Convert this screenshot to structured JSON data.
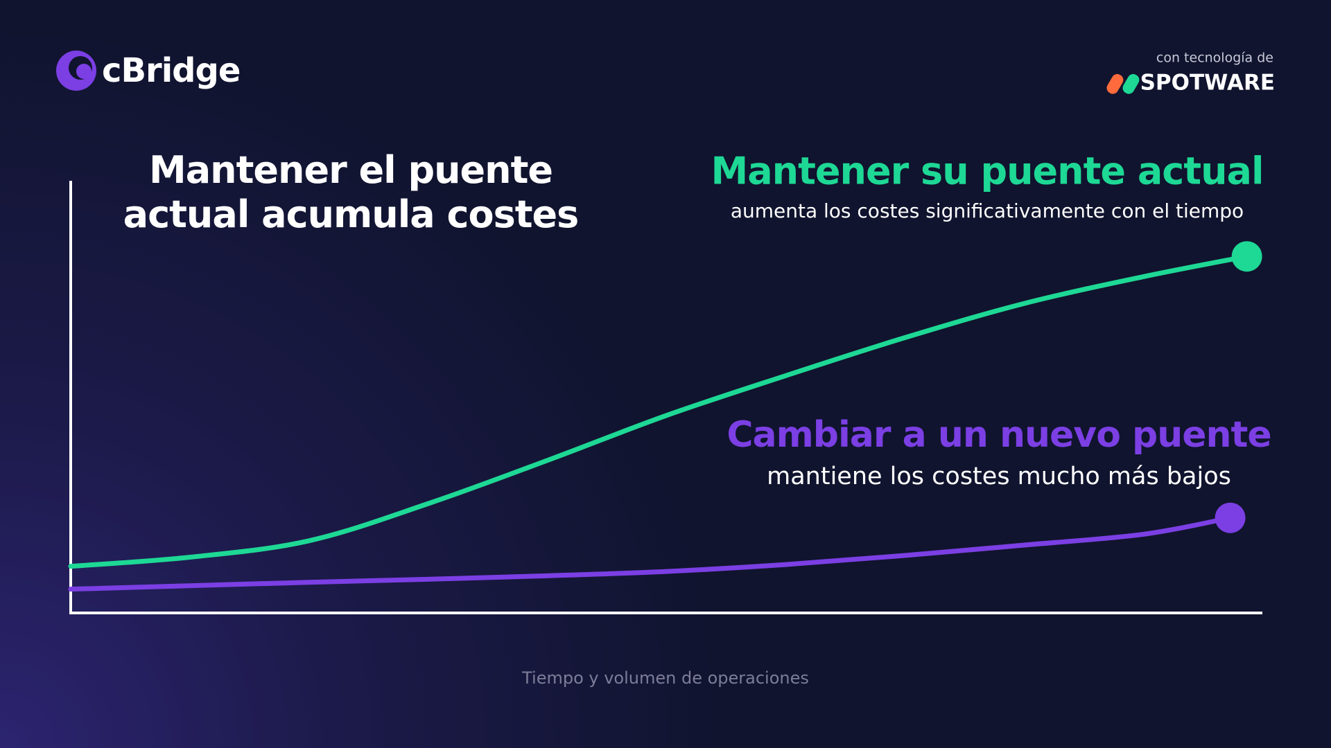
{
  "header": {
    "logo": "cBridge",
    "powered_by": "con tecnología de",
    "partner": "SPOTWARE"
  },
  "chart_data": {
    "type": "line",
    "title": "Mantener el puente actual acumula costes",
    "x_label": "Tiempo y volumen de operaciones",
    "xlim": [
      0,
      100
    ],
    "ylim": [
      0,
      100
    ],
    "series": [
      {
        "name": "Mantener su puente actual",
        "description": "aumenta los costes significativamente con el tiempo",
        "color": "#1ed895",
        "x": [
          0,
          10,
          20,
          30,
          40,
          50,
          60,
          70,
          80,
          90,
          98.7
        ],
        "values": [
          10.8,
          12.9,
          16.7,
          25.3,
          35.3,
          45.7,
          54.9,
          63.7,
          71.6,
          77.8,
          82.5
        ]
      },
      {
        "name": "Cambiar a un nuevo puente",
        "description": "mantiene los costes mucho más bajos",
        "color": "#7b3fe4",
        "x": [
          0,
          10,
          20,
          30,
          40,
          50,
          60,
          70,
          80,
          90,
          97.3
        ],
        "values": [
          5.5,
          6.3,
          7.1,
          7.8,
          8.6,
          9.6,
          11.2,
          13.3,
          15.7,
          18.2,
          22.0
        ]
      }
    ]
  }
}
